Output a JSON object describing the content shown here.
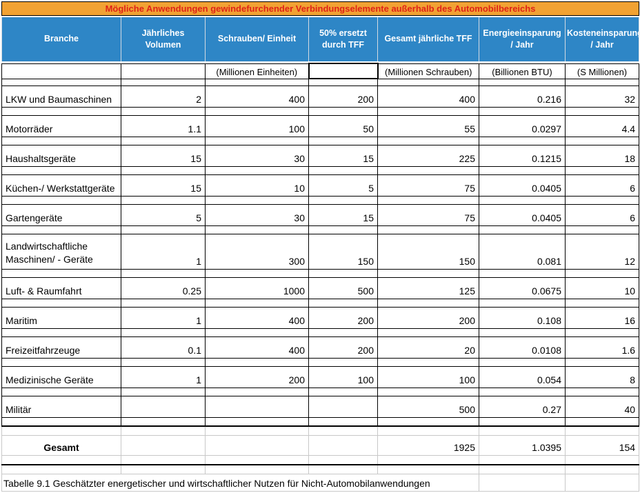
{
  "table_title": "Mögliche Anwendungen gewindefurchender Verbindungselemente außerhalb des Automobilbereichs",
  "columns": [
    "Branche",
    "Jährliches Volumen",
    "Schrauben/ Einheit",
    "50% ersetzt durch TFF",
    "Gesamt jährliche TFF",
    "Energieeinsparung / Jahr",
    "Kosteneinsparung / Jahr"
  ],
  "units": {
    "schrauben": "(Millionen Einheiten)",
    "tff": "(Millionen Schrauben)",
    "energie": "(Billionen BTU)",
    "kosten": "(S Millionen)"
  },
  "rows": [
    {
      "branche": "LKW und Baumaschinen",
      "volumen": "2",
      "schrauben": "400",
      "ersetzt": "200",
      "tff": "400",
      "energie": "0.216",
      "kosten": "32"
    },
    {
      "branche": "Motorräder",
      "volumen": "1.1",
      "schrauben": "100",
      "ersetzt": "50",
      "tff": "55",
      "energie": "0.0297",
      "kosten": "4.4"
    },
    {
      "branche": "Haushaltsgeräte",
      "volumen": "15",
      "schrauben": "30",
      "ersetzt": "15",
      "tff": "225",
      "energie": "0.1215",
      "kosten": "18"
    },
    {
      "branche": "Küchen-/ Werkstattgeräte",
      "volumen": "15",
      "schrauben": "10",
      "ersetzt": "5",
      "tff": "75",
      "energie": "0.0405",
      "kosten": "6"
    },
    {
      "branche": "Gartengeräte",
      "volumen": "5",
      "schrauben": "30",
      "ersetzt": "15",
      "tff": "75",
      "energie": "0.0405",
      "kosten": "6"
    },
    {
      "branche": "Landwirtschaftliche Maschinen/ - Geräte",
      "volumen": "1",
      "schrauben": "300",
      "ersetzt": "150",
      "tff": "150",
      "energie": "0.081",
      "kosten": "12"
    },
    {
      "branche": "Luft- & Raumfahrt",
      "volumen": "0.25",
      "schrauben": "1000",
      "ersetzt": "500",
      "tff": "125",
      "energie": "0.0675",
      "kosten": "10"
    },
    {
      "branche": "Maritim",
      "volumen": "1",
      "schrauben": "400",
      "ersetzt": "200",
      "tff": "200",
      "energie": "0.108",
      "kosten": "16"
    },
    {
      "branche": "Freizeitfahrzeuge",
      "volumen": "0.1",
      "schrauben": "400",
      "ersetzt": "200",
      "tff": "20",
      "energie": "0.0108",
      "kosten": "1.6"
    },
    {
      "branche": "Medizinische Geräte",
      "volumen": "1",
      "schrauben": "200",
      "ersetzt": "100",
      "tff": "100",
      "energie": "0.054",
      "kosten": "8"
    },
    {
      "branche": "Militär",
      "volumen": "",
      "schrauben": "",
      "ersetzt": "",
      "tff": "500",
      "energie": "0.27",
      "kosten": "40"
    }
  ],
  "gesamt": {
    "label": "Gesamt",
    "tff": "1925",
    "energie": "1.0395",
    "kosten": "154"
  },
  "caption": "Tabelle 9.1 Geschätzter energetischer und wirtschaftlicher Nutzen für Nicht-Automobilanwendungen",
  "colors": {
    "title_bg": "#F1A233",
    "title_text": "#DF2318",
    "header_bg": "#2E86C6",
    "header_text": "#FFFFFF",
    "grid_dark": "#000000",
    "grid_light": "#C8C8C8"
  }
}
